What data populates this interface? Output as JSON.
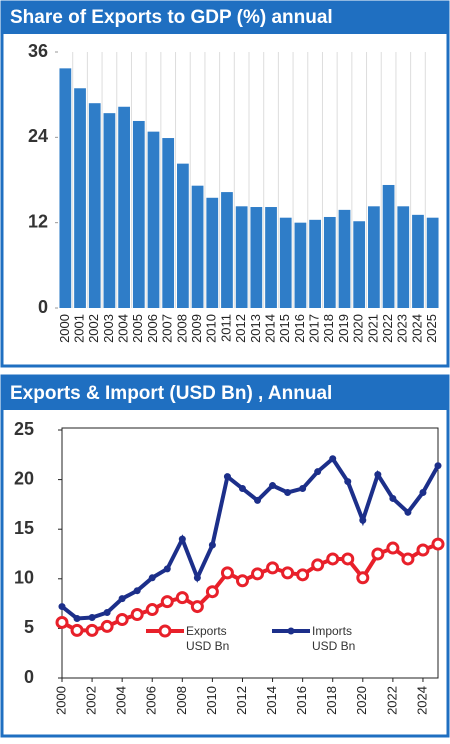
{
  "chart_data": [
    {
      "type": "bar",
      "title": "Share of Exports to GDP (%) annual",
      "categories": [
        "2000",
        "2001",
        "2002",
        "2003",
        "2004",
        "2005",
        "2006",
        "2007",
        "2008",
        "2009",
        "2010",
        "2011",
        "2012",
        "2013",
        "2014",
        "2015",
        "2016",
        "2017",
        "2018",
        "2019",
        "2020",
        "2021",
        "2022",
        "2023",
        "2024",
        "2025"
      ],
      "values": [
        33.7,
        30.9,
        28.8,
        27.4,
        28.3,
        26.3,
        24.8,
        23.9,
        20.3,
        17.2,
        15.5,
        16.3,
        14.3,
        14.2,
        14.2,
        12.7,
        12.0,
        12.4,
        12.8,
        13.8,
        12.2,
        14.3,
        17.3,
        14.3,
        13.1,
        12.7
      ],
      "color": "#2f7dc8",
      "ylim": [
        0,
        36
      ],
      "yticks": [
        0,
        12,
        24,
        36
      ]
    },
    {
      "type": "line",
      "title": "Exports & Import (USD Bn) , Annual",
      "x": [
        2000,
        2001,
        2002,
        2003,
        2004,
        2005,
        2006,
        2007,
        2008,
        2009,
        2010,
        2011,
        2012,
        2013,
        2014,
        2015,
        2016,
        2017,
        2018,
        2019,
        2020,
        2021,
        2022,
        2023,
        2024,
        2025
      ],
      "series": [
        {
          "name": "Exports USD Bn",
          "color": "#e8202a",
          "values": [
            5.6,
            4.8,
            4.8,
            5.2,
            5.9,
            6.4,
            6.9,
            7.7,
            8.1,
            7.2,
            8.7,
            10.6,
            9.8,
            10.5,
            11.1,
            10.6,
            10.4,
            11.4,
            12.0,
            12.0,
            10.1,
            12.5,
            13.1,
            12.0,
            12.9,
            13.5
          ]
        },
        {
          "name": "Imports USD Bn",
          "color": "#1c2f8a",
          "values": [
            7.2,
            6.0,
            6.1,
            6.6,
            8.0,
            8.8,
            10.1,
            11.0,
            14.0,
            10.1,
            13.4,
            20.3,
            19.1,
            17.9,
            19.4,
            18.7,
            19.1,
            20.8,
            22.1,
            19.8,
            15.9,
            20.5,
            18.1,
            16.7,
            18.7,
            21.4
          ]
        }
      ],
      "xlim": [
        2000,
        2025
      ],
      "xticks": [
        2000,
        2002,
        2004,
        2006,
        2008,
        2010,
        2012,
        2014,
        2016,
        2018,
        2020,
        2022,
        2024
      ],
      "ylim": [
        0,
        25
      ],
      "yticks": [
        0,
        5,
        10,
        15,
        20,
        25
      ]
    }
  ]
}
